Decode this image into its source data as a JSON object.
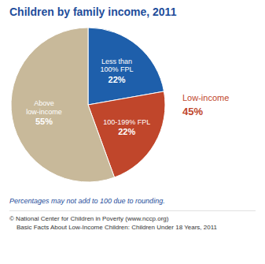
{
  "chart_data": {
    "type": "pie",
    "title": "Children by family income, 2011",
    "categories": [
      "Less than\n100% FPL",
      "100-199% FPL",
      "Above\nlow-income"
    ],
    "values": [
      22,
      22,
      55
    ],
    "value_labels": [
      "22%",
      "22%",
      "55%"
    ],
    "colors": [
      "#1e5fab",
      "#c0462b",
      "#c8b99a"
    ],
    "data_labels": true,
    "annotations": [
      "Low-income",
      "45%"
    ],
    "footnote": "Percentages may not add to 100 due to rounding.",
    "copyright": "© National Center for Children in Poverty (www.nccp.org)\n    Basic Facts About Low-Income Children: Children Under 18 Years, 2011"
  }
}
